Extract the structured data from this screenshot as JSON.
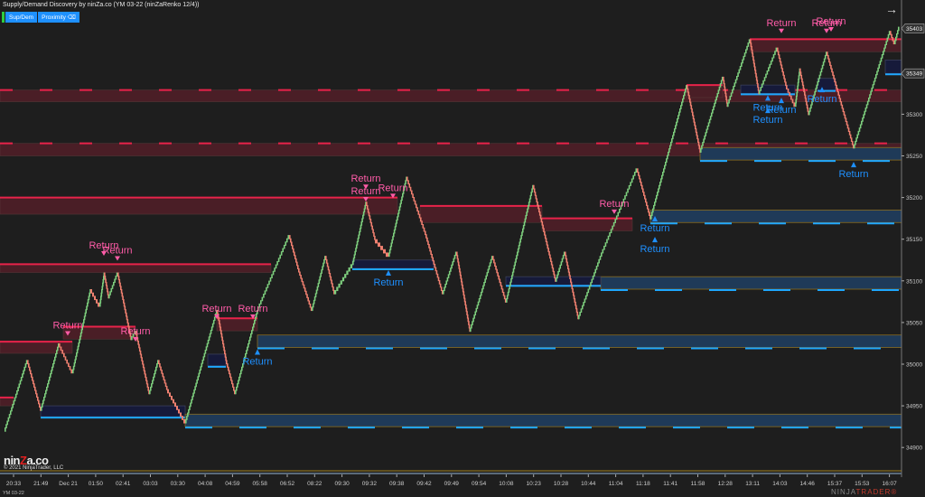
{
  "header": {
    "title": "Supply/Demand Discovery by ninZa.co (YM 03-22 (ninZaRenko 12/4))",
    "buttons": [
      "Sup/Dem",
      "Proximity ⌫"
    ]
  },
  "footer": {
    "logo": "ninZa.co",
    "copyright": "© 2021 NinjaTrader, LLC",
    "symbol": "YM 03-22",
    "brand_a": "NINJA",
    "brand_b": "TRADER®"
  },
  "colors": {
    "up": "#7ecf7e",
    "down": "#f08070",
    "supply": "#4a1e26",
    "supply_line": "#e8234a",
    "demand": "#1f3a58",
    "demand_fresh": "#161a3a",
    "demand_line": "#1ea7ff",
    "zone_border": "#8a6d1f",
    "bg": "#1e1e1e"
  },
  "chart_data": {
    "type": "renko",
    "ylim": [
      34885,
      35425
    ],
    "xlim": [
      0,
      200
    ],
    "y_ticks": [
      34900,
      34950,
      35000,
      35050,
      35100,
      35150,
      35200,
      35250,
      35300
    ],
    "price_tags": [
      {
        "label": "35403",
        "price": 35403
      },
      {
        "label": "35349",
        "price": 35349
      }
    ],
    "x_tick_labels": [
      "20:33",
      "21:49",
      "Dec 21",
      "01:50",
      "02:41",
      "03:03",
      "03:30",
      "04:08",
      "04:59",
      "05:58",
      "06:52",
      "08:22",
      "09:30",
      "09:32",
      "09:38",
      "09:42",
      "09:49",
      "09:54",
      "10:08",
      "10:23",
      "10:28",
      "10:44",
      "11:04",
      "11:18",
      "11:41",
      "11:58",
      "12:28",
      "13:11",
      "14:03",
      "14:46",
      "15:37",
      "15:53",
      "16:07"
    ],
    "pivots": [
      [
        1,
        34920
      ],
      [
        6,
        35005
      ],
      [
        9,
        34945
      ],
      [
        13,
        35025
      ],
      [
        16,
        34990
      ],
      [
        20,
        35090
      ],
      [
        22,
        35070
      ],
      [
        23,
        35110
      ],
      [
        24,
        35080
      ],
      [
        26,
        35110
      ],
      [
        29,
        35030
      ],
      [
        30,
        35040
      ],
      [
        33,
        34965
      ],
      [
        35,
        35005
      ],
      [
        37,
        34970
      ],
      [
        41,
        34930
      ],
      [
        48,
        35065
      ],
      [
        50,
        35005
      ],
      [
        52,
        34965
      ],
      [
        57,
        35065
      ],
      [
        64,
        35155
      ],
      [
        66,
        35115
      ],
      [
        69,
        35065
      ],
      [
        72,
        35130
      ],
      [
        74,
        35085
      ],
      [
        78,
        35120
      ],
      [
        81,
        35195
      ],
      [
        83,
        35150
      ],
      [
        86,
        35130
      ],
      [
        90,
        35225
      ],
      [
        94,
        35160
      ],
      [
        98,
        35085
      ],
      [
        101,
        35135
      ],
      [
        104,
        35040
      ],
      [
        109,
        35130
      ],
      [
        112,
        35075
      ],
      [
        118,
        35215
      ],
      [
        123,
        35100
      ],
      [
        125,
        35135
      ],
      [
        128,
        35055
      ],
      [
        133,
        35130
      ],
      [
        141,
        35235
      ],
      [
        144,
        35175
      ],
      [
        152,
        35335
      ],
      [
        155,
        35255
      ],
      [
        160,
        35345
      ],
      [
        161,
        35310
      ],
      [
        166,
        35390
      ],
      [
        168,
        35325
      ],
      [
        172,
        35380
      ],
      [
        174,
        35335
      ],
      [
        176,
        35310
      ],
      [
        177,
        35355
      ],
      [
        179,
        35300
      ],
      [
        183,
        35375
      ],
      [
        189,
        35260
      ],
      [
        197,
        35400
      ],
      [
        198,
        35385
      ],
      [
        199,
        35405
      ]
    ],
    "supply_zones": [
      [
        0,
        200,
        35329,
        35315
      ],
      [
        0,
        200,
        35265,
        35250
      ],
      [
        0,
        88,
        35200,
        35180
      ],
      [
        0,
        60,
        35120,
        35110
      ],
      [
        0,
        16,
        35027,
        35013
      ],
      [
        0,
        3,
        34960,
        34950
      ],
      [
        93,
        120,
        35190,
        35170
      ],
      [
        120,
        140,
        35175,
        35160
      ],
      [
        152,
        160,
        35335,
        35320
      ],
      [
        166,
        200,
        35390,
        35375
      ],
      [
        48,
        57,
        35055,
        35040
      ],
      [
        14,
        30,
        35045,
        35030
      ]
    ],
    "demand_zones": [
      [
        9,
        41,
        34950,
        34937,
        "fresh"
      ],
      [
        41,
        200,
        34940,
        34925,
        "tested"
      ],
      [
        57,
        200,
        35035,
        35020,
        "tested"
      ],
      [
        133,
        200,
        35105,
        35090,
        "tested"
      ],
      [
        144,
        200,
        35185,
        35170,
        "tested"
      ],
      [
        155,
        200,
        35260,
        35245,
        "tested"
      ],
      [
        78,
        96,
        35125,
        35115,
        "fresh"
      ],
      [
        112,
        133,
        35105,
        35095,
        "fresh"
      ],
      [
        46,
        50,
        35012,
        34998,
        "fresh"
      ],
      [
        164,
        176,
        35335,
        35325,
        "fresh"
      ],
      [
        181,
        185,
        35343,
        35329,
        "fresh"
      ],
      [
        196,
        200,
        35365,
        35349,
        "fresh"
      ]
    ],
    "signals": {
      "text": "Return",
      "sell": [
        [
          23,
          35128
        ],
        [
          26,
          35122
        ],
        [
          15,
          35032
        ],
        [
          48,
          35052
        ],
        [
          56,
          35052
        ],
        [
          30,
          35025
        ],
        [
          81,
          35208
        ],
        [
          81,
          35193
        ],
        [
          87,
          35197
        ],
        [
          136,
          35178
        ],
        [
          173,
          35395
        ],
        [
          183,
          35395
        ],
        [
          184,
          35397
        ]
      ],
      "buy": [
        [
          57,
          35020
        ],
        [
          86,
          35115
        ],
        [
          145,
          35180
        ],
        [
          145,
          35155
        ],
        [
          170,
          35325
        ],
        [
          173,
          35322
        ],
        [
          170,
          35310
        ],
        [
          182,
          35335
        ],
        [
          189,
          35245
        ]
      ]
    }
  }
}
